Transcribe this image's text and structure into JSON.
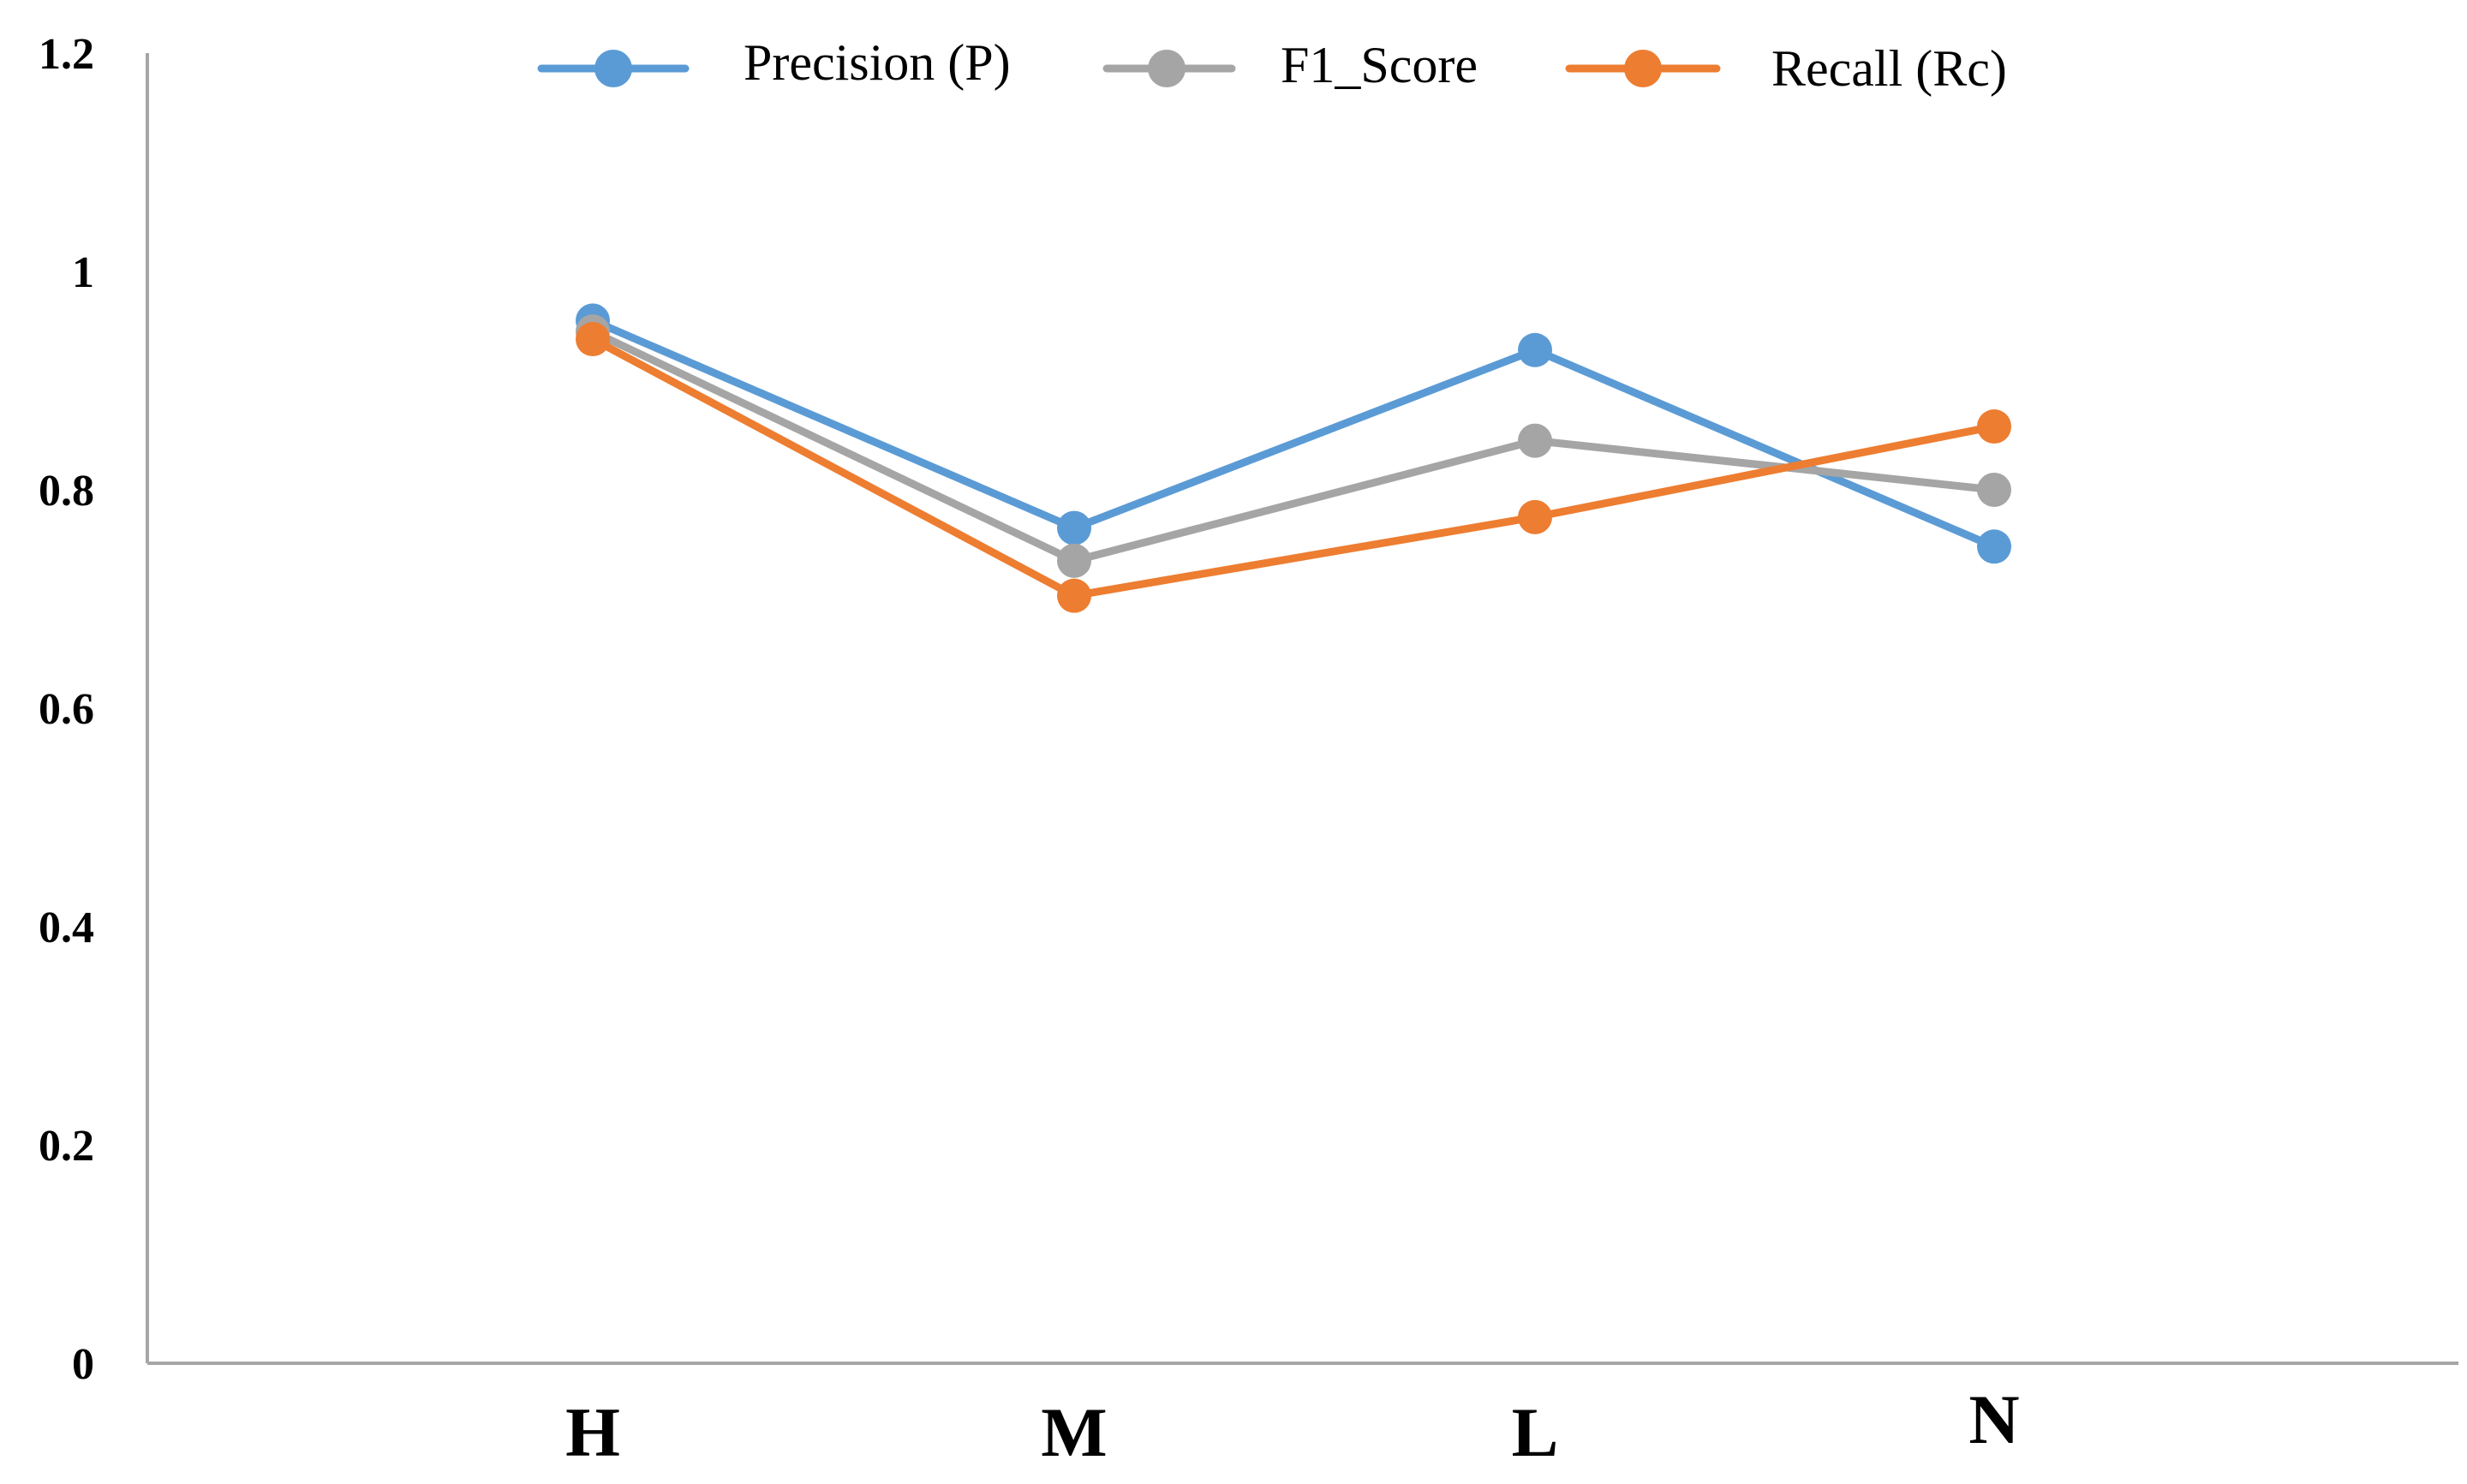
{
  "chart_data": {
    "type": "line",
    "title": "",
    "xlabel": "",
    "ylabel": "",
    "categories": [
      "H",
      "M",
      "L",
      "N"
    ],
    "ylim": [
      0,
      1.2
    ],
    "yticks": [
      0,
      0.2,
      0.4,
      0.6,
      0.8,
      1,
      1.2
    ],
    "ytick_labels": [
      "0",
      "0.2",
      "0.4",
      "0.6",
      "0.8",
      "1",
      "1.2"
    ],
    "grid": false,
    "legend_position": "top",
    "series": [
      {
        "name": "Precision (P)",
        "color": "#5b9bd5",
        "values": [
          0.955,
          0.765,
          0.928,
          0.748
        ]
      },
      {
        "name": "F1_Score",
        "color": "#a5a5a5",
        "values": [
          0.945,
          0.735,
          0.845,
          0.8
        ]
      },
      {
        "name": "Recall (Rc)",
        "color": "#ed7d31",
        "values": [
          0.938,
          0.703,
          0.775,
          0.858
        ]
      }
    ]
  }
}
